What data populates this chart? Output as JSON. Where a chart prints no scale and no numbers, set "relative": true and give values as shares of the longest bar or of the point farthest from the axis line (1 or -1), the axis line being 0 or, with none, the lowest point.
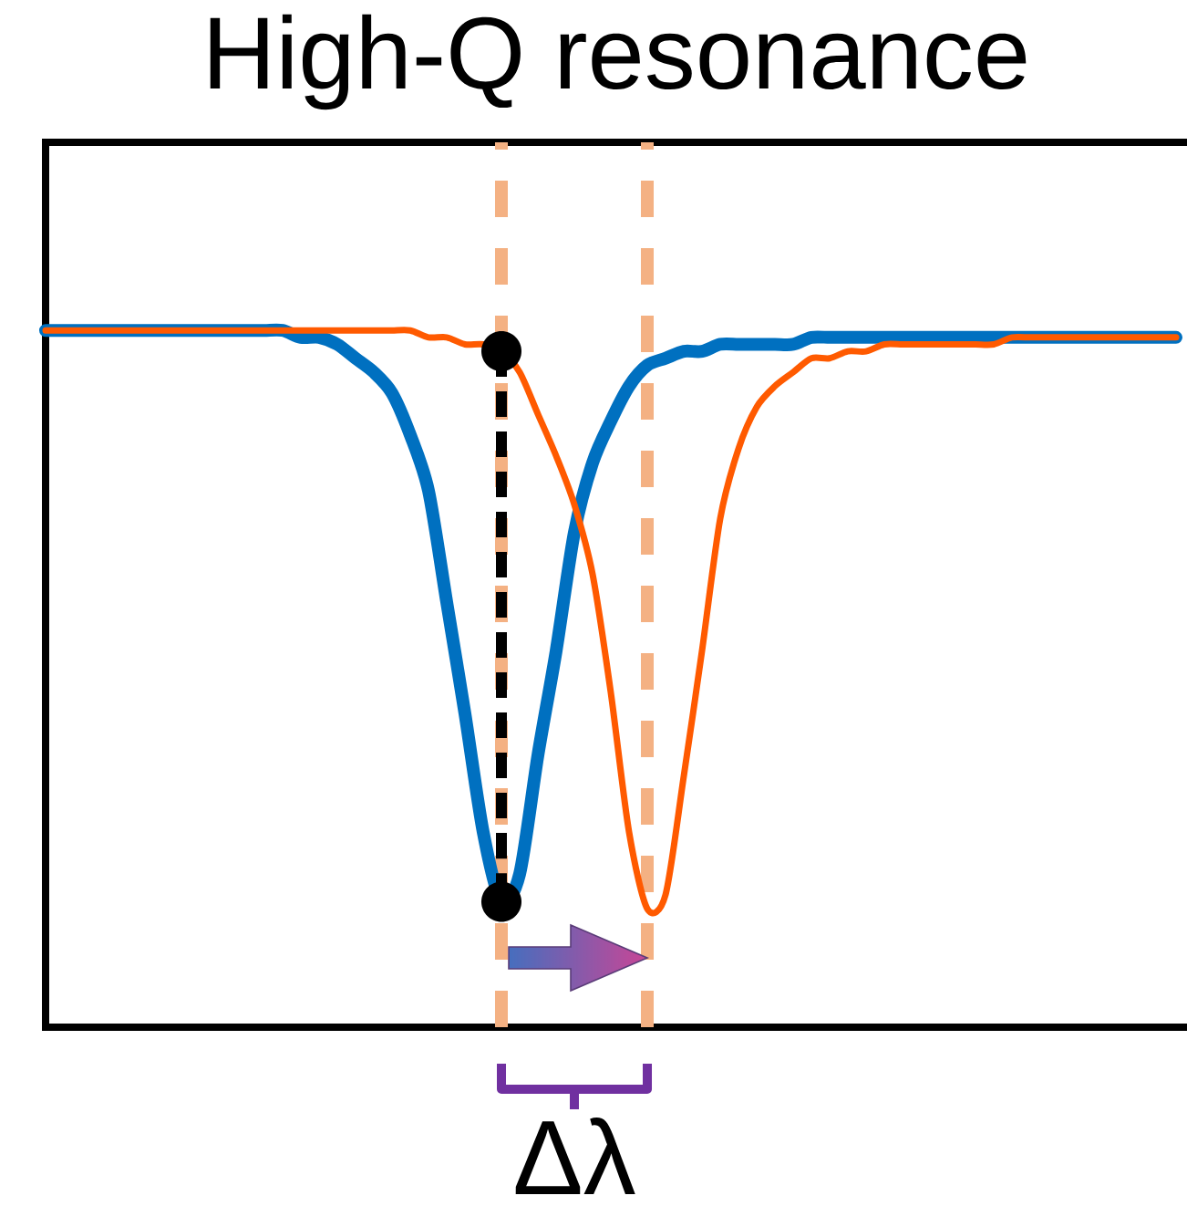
{
  "chart_data": {
    "type": "line",
    "title": "High-Q resonance",
    "relative": true,
    "categories": [
      null,
      null,
      null,
      null,
      null,
      null,
      null,
      null,
      null,
      null,
      null,
      null,
      null,
      null,
      null,
      null,
      null,
      null,
      null,
      null,
      null,
      null,
      null,
      null,
      null,
      null,
      null,
      null,
      null,
      null,
      null,
      null,
      null,
      null,
      null,
      null,
      null,
      null,
      null,
      null,
      null,
      null,
      null,
      null,
      null,
      null,
      null,
      null,
      null,
      null,
      null,
      null,
      null,
      null,
      null,
      null,
      null,
      null,
      null,
      null,
      null,
      null,
      null
    ],
    "series": [
      {
        "color": "#0070c0",
        "values": [
          1.0,
          1.0,
          1.0,
          1.0,
          1.0,
          1.0,
          1.0,
          1.0,
          1.0,
          1.0,
          1.0,
          1.0,
          1.0,
          1.0,
          0.99,
          0.99,
          0.98,
          0.96,
          0.94,
          0.91,
          0.85,
          0.77,
          0.61,
          0.45,
          0.28,
          0.18,
          0.22,
          0.39,
          0.54,
          0.71,
          0.81,
          0.87,
          0.92,
          0.95,
          0.96,
          0.97,
          0.97,
          0.98,
          0.98,
          0.98,
          0.98,
          0.98,
          0.99,
          0.99,
          0.99,
          0.99,
          0.99,
          0.99,
          0.99,
          0.99,
          0.99,
          0.99,
          0.99,
          0.99,
          0.99,
          0.99,
          0.99,
          0.99,
          0.99,
          0.99,
          0.99,
          0.99,
          0.99
        ]
      },
      {
        "color": "#ff5a00",
        "values": [
          1.0,
          1.0,
          1.0,
          1.0,
          1.0,
          1.0,
          1.0,
          1.0,
          1.0,
          1.0,
          1.0,
          1.0,
          1.0,
          1.0,
          1.0,
          1.0,
          1.0,
          1.0,
          1.0,
          1.0,
          1.0,
          0.99,
          0.99,
          0.98,
          0.98,
          0.97,
          0.94,
          0.88,
          0.82,
          0.75,
          0.65,
          0.48,
          0.28,
          0.17,
          0.19,
          0.36,
          0.54,
          0.73,
          0.83,
          0.89,
          0.92,
          0.94,
          0.96,
          0.96,
          0.97,
          0.97,
          0.98,
          0.98,
          0.98,
          0.98,
          0.98,
          0.98,
          0.98,
          0.99,
          0.99,
          0.99,
          0.99,
          0.99,
          0.99,
          0.99,
          0.99,
          0.99,
          0.99
        ]
      }
    ],
    "annotations": [
      "Δλ"
    ]
  }
}
